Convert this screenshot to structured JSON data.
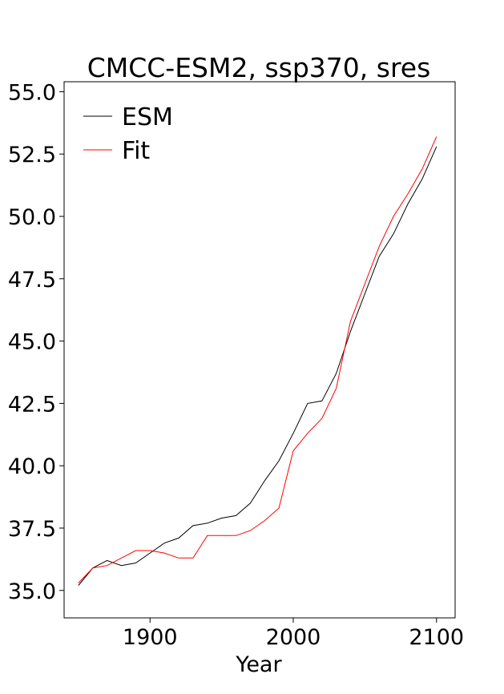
{
  "chart_data": {
    "type": "line",
    "title": "CMCC-ESM2, ssp370, sres",
    "xlabel": "Year",
    "ylabel": "",
    "xlim": [
      1840,
      2113
    ],
    "ylim": [
      33.9,
      55.4
    ],
    "xticks": [
      1900,
      2000,
      2100
    ],
    "xtick_labels": [
      "1900",
      "2000",
      "2100"
    ],
    "yticks": [
      35.0,
      37.5,
      40.0,
      42.5,
      45.0,
      47.5,
      50.0,
      52.5,
      55.0
    ],
    "ytick_labels": [
      "35.0",
      "37.5",
      "40.0",
      "42.5",
      "45.0",
      "47.5",
      "50.0",
      "52.5",
      "55.0"
    ],
    "grid": false,
    "legend": {
      "position": "top-left"
    },
    "series": [
      {
        "name": "ESM",
        "color": "#000000",
        "x": [
          1850,
          1860,
          1870,
          1880,
          1890,
          1900,
          1910,
          1920,
          1930,
          1940,
          1950,
          1960,
          1970,
          1980,
          1990,
          2000,
          2010,
          2020,
          2030,
          2040,
          2050,
          2060,
          2070,
          2080,
          2090,
          2100
        ],
        "values": [
          35.2,
          35.9,
          36.2,
          36.0,
          36.1,
          36.5,
          36.9,
          37.1,
          37.6,
          37.7,
          37.9,
          38.0,
          38.5,
          39.4,
          40.2,
          41.3,
          42.5,
          42.6,
          43.7,
          45.4,
          46.9,
          48.4,
          49.3,
          50.5,
          51.5,
          52.8
        ]
      },
      {
        "name": "Fit",
        "color": "#ff0000",
        "x": [
          1850,
          1860,
          1870,
          1880,
          1890,
          1900,
          1910,
          1920,
          1930,
          1940,
          1950,
          1960,
          1970,
          1980,
          1990,
          2000,
          2010,
          2020,
          2030,
          2040,
          2050,
          2060,
          2070,
          2080,
          2090,
          2100
        ],
        "values": [
          35.3,
          35.9,
          36.0,
          36.3,
          36.6,
          36.6,
          36.5,
          36.3,
          36.3,
          37.2,
          37.2,
          37.2,
          37.4,
          37.8,
          38.3,
          40.6,
          41.3,
          41.9,
          43.1,
          45.8,
          47.3,
          48.8,
          50.0,
          50.9,
          51.9,
          53.2
        ]
      }
    ]
  }
}
